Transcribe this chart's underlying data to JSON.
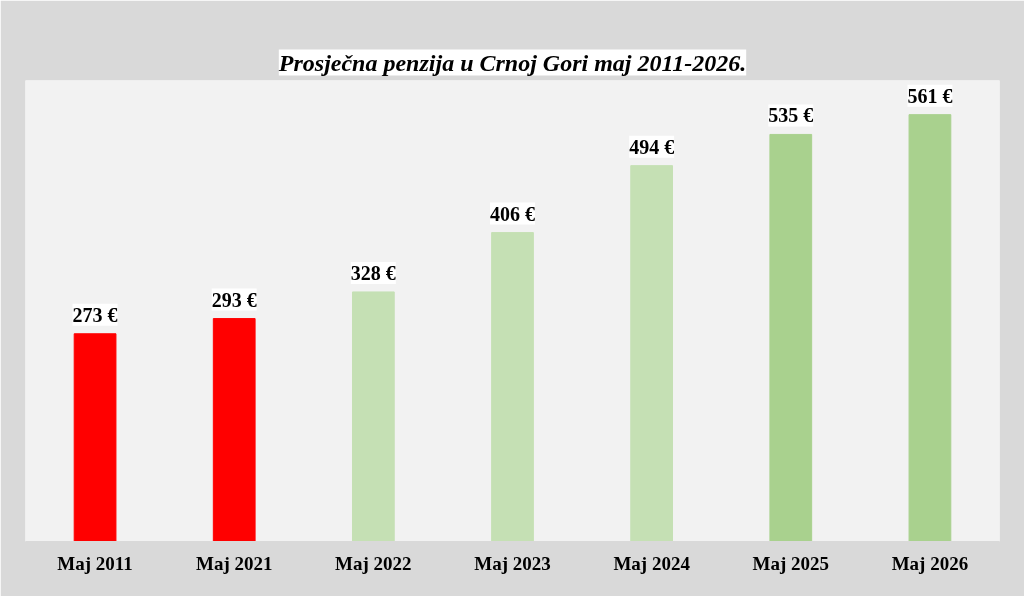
{
  "chart_data": {
    "type": "bar",
    "title": "Prosječna penzija u Crnoj Gori maj 2011-2026.",
    "categories": [
      "Maj 2011",
      "Maj 2021",
      "Maj 2022",
      "Maj 2023",
      "Maj 2024",
      "Maj 2025",
      "Maj 2026"
    ],
    "values": [
      273,
      293,
      328,
      406,
      494,
      535,
      561
    ],
    "colors": [
      "#ff0000",
      "#ff0000",
      "#c5e0b4",
      "#c5e0b4",
      "#c5e0b4",
      "#a9d18e",
      "#a9d18e"
    ],
    "value_labels": [
      "273 €",
      "293 €",
      "328 €",
      "406 €",
      "494 €",
      "535 €",
      "561 €"
    ]
  }
}
